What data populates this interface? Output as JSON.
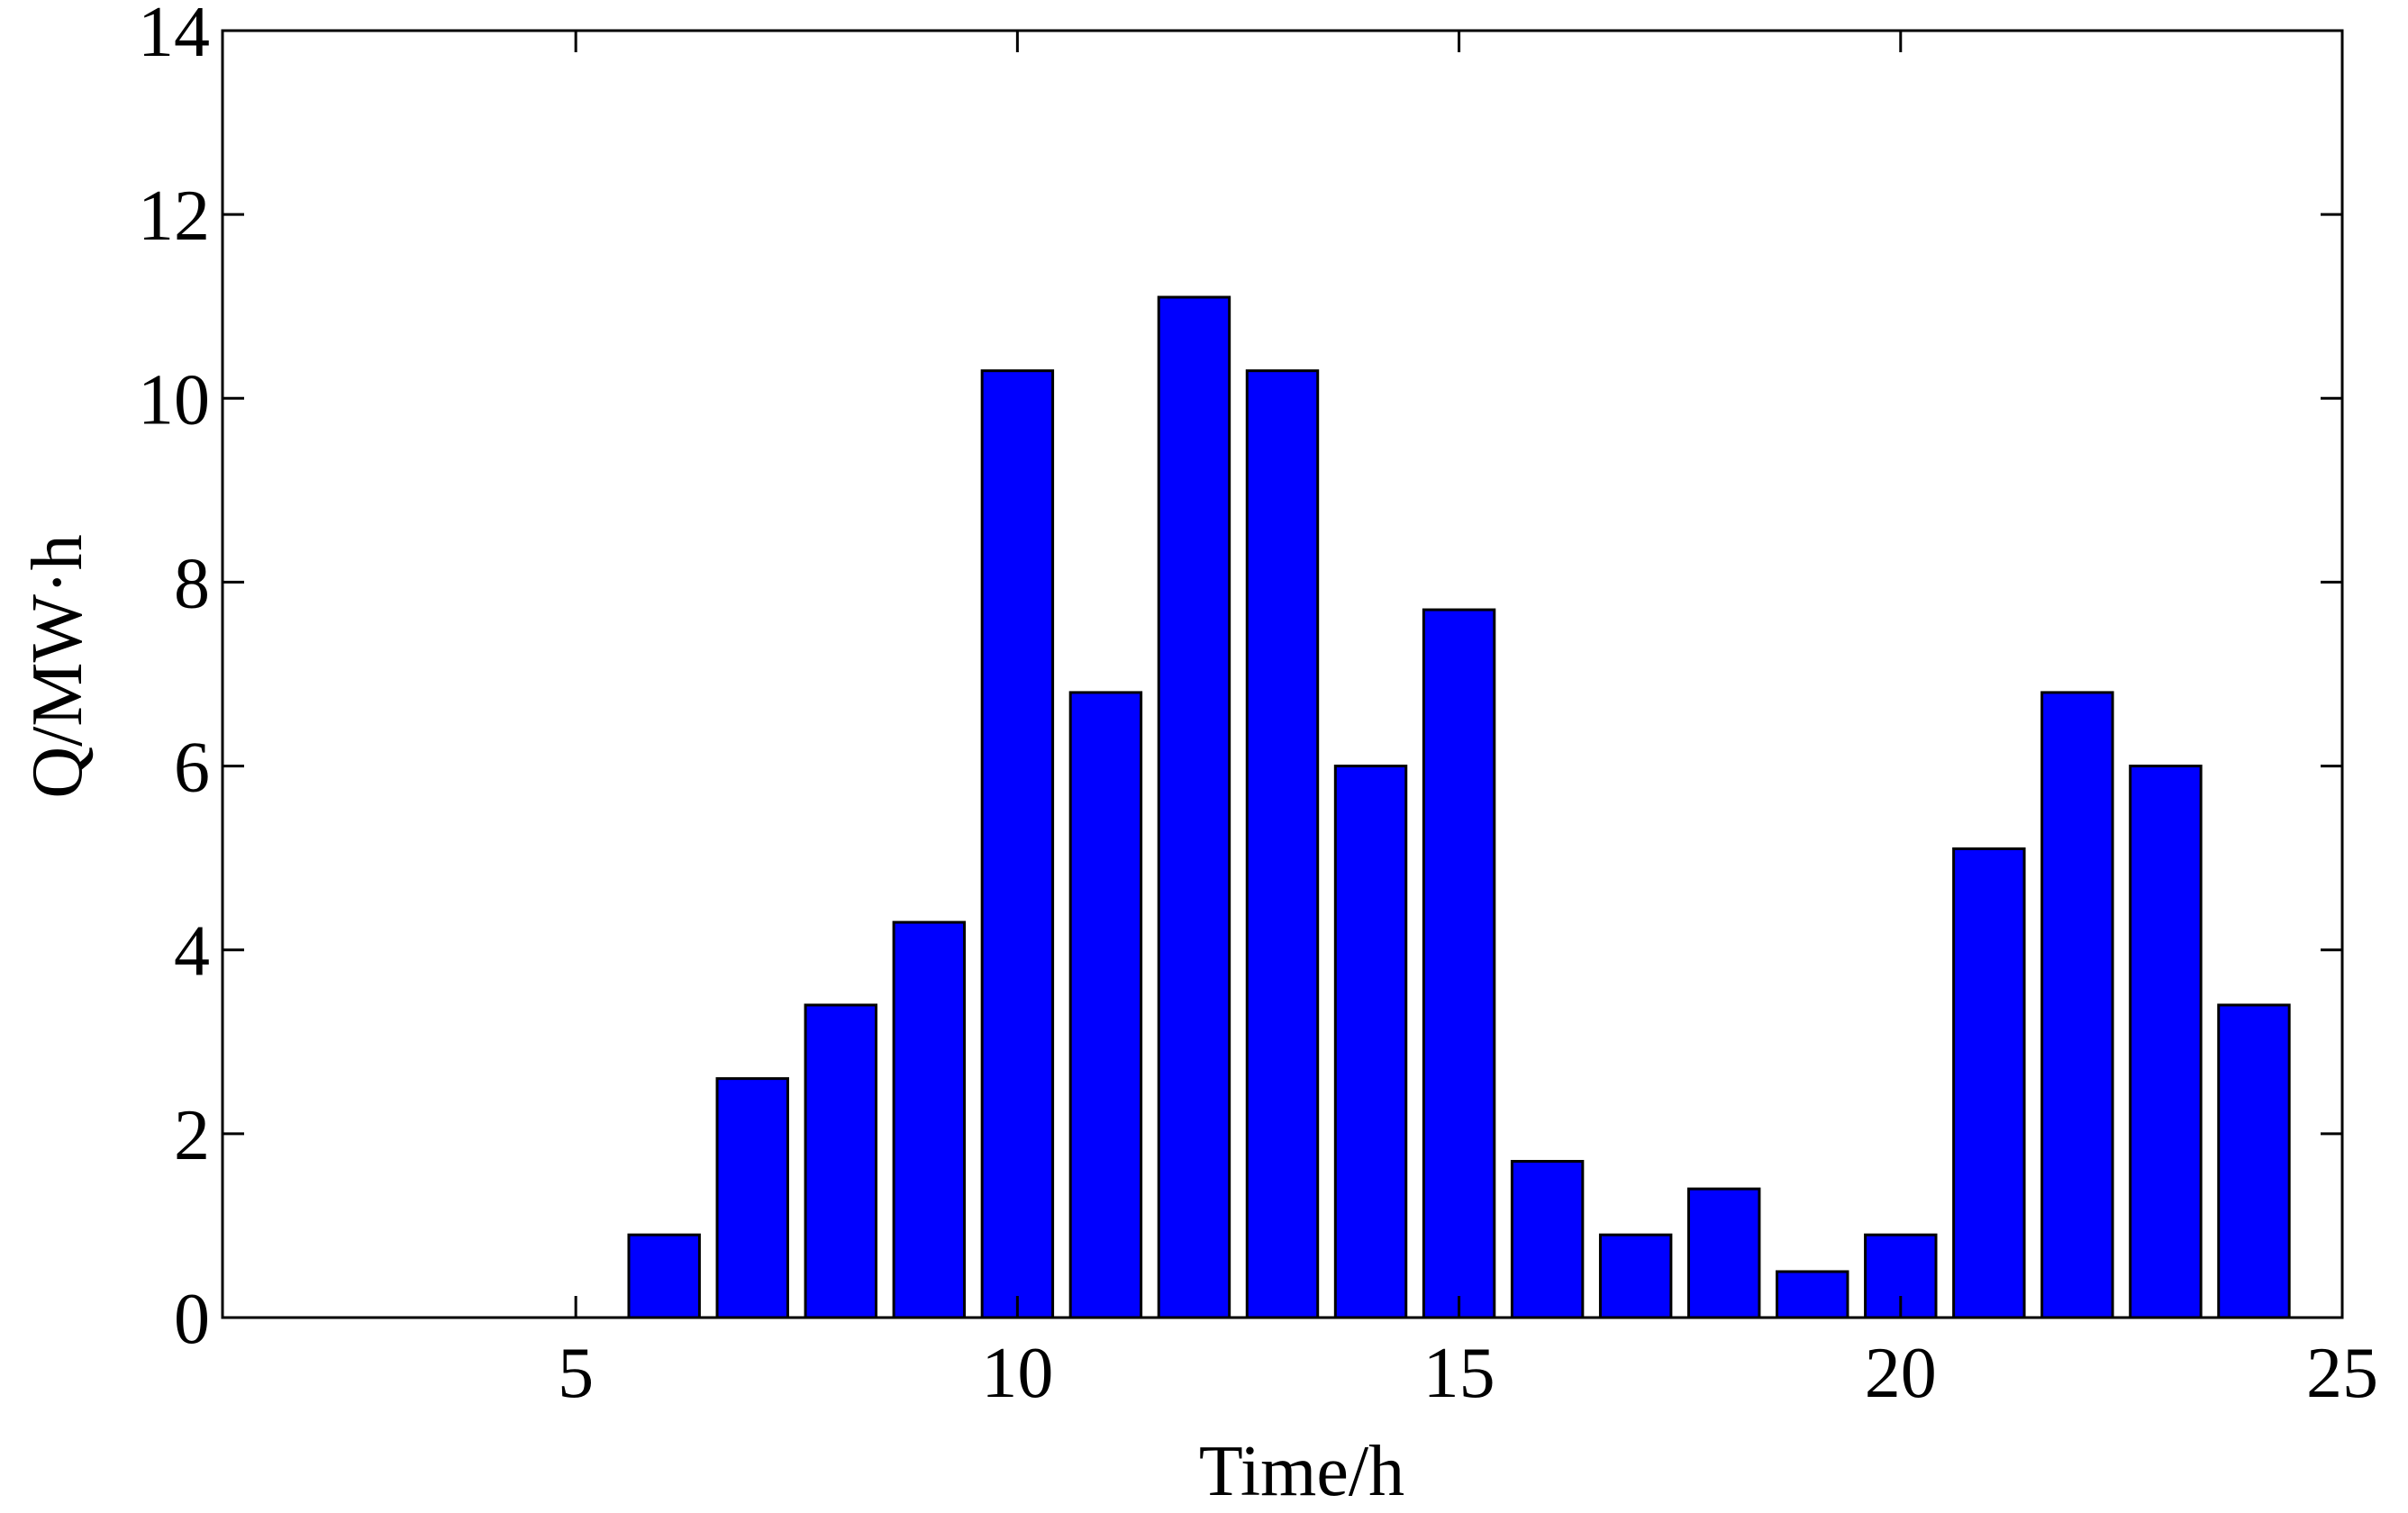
{
  "chart_data": {
    "type": "bar",
    "x_label": "Time/h",
    "y_label": "Q/MW·h",
    "x": [
      6,
      7,
      8,
      9,
      10,
      11,
      12,
      13,
      14,
      15,
      16,
      17,
      18,
      19,
      20,
      21,
      22,
      23,
      24
    ],
    "values": [
      0.9,
      2.6,
      3.4,
      4.3,
      10.3,
      6.8,
      11.1,
      10.3,
      6.0,
      7.7,
      1.7,
      0.9,
      1.4,
      0.5,
      0.9,
      5.1,
      6.8,
      6.0,
      3.4
    ],
    "color": "#0000ff",
    "xlim": [
      1,
      25
    ],
    "xticks": [
      5,
      10,
      15,
      20,
      25
    ],
    "ylim": [
      0,
      14
    ],
    "yticks": [
      0,
      2,
      4,
      6,
      8,
      10,
      12,
      14
    ],
    "grid": false
  }
}
